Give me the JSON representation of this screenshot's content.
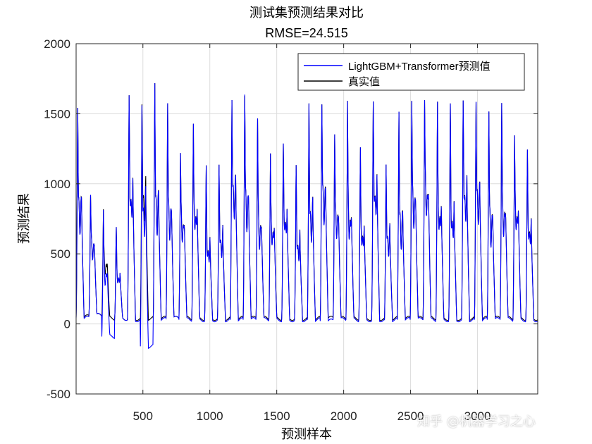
{
  "chart_data": {
    "type": "line",
    "title": "测试集预测结果对比",
    "subtitle": "RMSE=24.515",
    "xlabel": "预测样本",
    "ylabel": "预测结果",
    "xlim": [
      1,
      3450
    ],
    "ylim": [
      -500,
      2000
    ],
    "xticks": [
      500,
      1000,
      1500,
      2000,
      2500,
      3000
    ],
    "yticks": [
      -500,
      0,
      500,
      1000,
      1500,
      2000
    ],
    "grid": true,
    "legend_position": "top-right",
    "series_colors": [
      "#0000ff",
      "#000000"
    ],
    "period": 96,
    "series": [
      {
        "name": "LightGBM+Transformer预测值",
        "color": "#0000ff",
        "cycle_peaks": [
          1600,
          950,
          850,
          720,
          1690,
          1620,
          1790,
          1640,
          1260,
          1480,
          1180,
          1180,
          1650,
          1700,
          1530,
          1260,
          1330,
          1180,
          1640,
          1620,
          1400,
          1660,
          1310,
          1640,
          1180,
          1580,
          1650,
          1650,
          1650,
          1640,
          1650,
          1640,
          1580,
          1640,
          1390,
          1290
        ],
        "cycle_troughs": [
          40,
          60,
          -90,
          40,
          30,
          -160,
          30,
          40,
          30,
          30,
          30,
          30,
          30,
          30,
          30,
          30,
          30,
          30,
          30,
          20,
          30,
          30,
          30,
          30,
          30,
          30,
          30,
          30,
          30,
          30,
          30,
          30,
          30,
          30,
          30,
          30
        ]
      },
      {
        "name": "真实值",
        "color": "#000000",
        "cycle_peaks": [
          1600,
          950,
          850,
          720,
          1690,
          1620,
          1790,
          1640,
          1260,
          1480,
          1180,
          1180,
          1650,
          1690,
          1530,
          1260,
          1330,
          1180,
          1640,
          1620,
          1400,
          1660,
          1310,
          1640,
          1180,
          1580,
          1650,
          1650,
          1650,
          1640,
          1650,
          1640,
          1580,
          1640,
          1390,
          1290
        ],
        "cycle_troughs": [
          50,
          60,
          40,
          40,
          40,
          40,
          40,
          40,
          40,
          40,
          40,
          40,
          40,
          40,
          40,
          40,
          40,
          40,
          40,
          40,
          40,
          40,
          40,
          40,
          40,
          40,
          40,
          40,
          40,
          40,
          40,
          40,
          40,
          40,
          40,
          40
        ]
      }
    ]
  },
  "watermark": "知乎 @机器学习之心"
}
